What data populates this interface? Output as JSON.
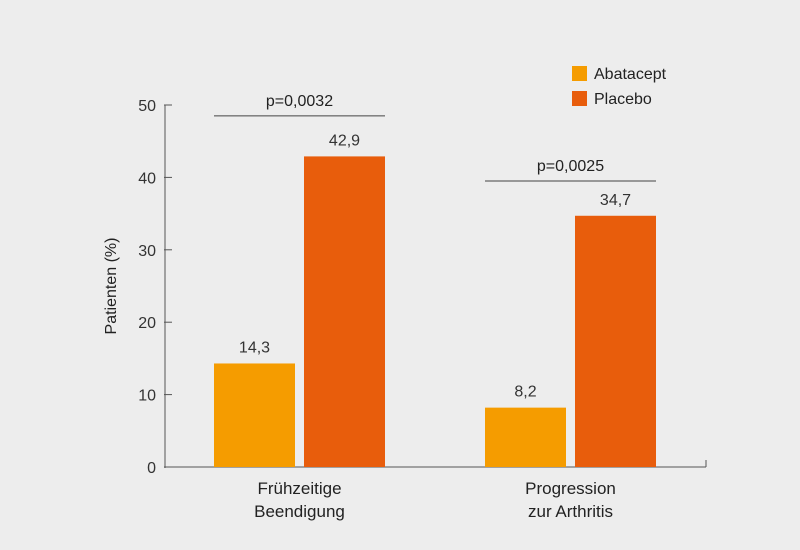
{
  "chart_data": {
    "type": "bar",
    "title": "",
    "xlabel": "",
    "ylabel": "Patienten (%)",
    "ylim": [
      0,
      50
    ],
    "yticks": [
      0,
      10,
      20,
      30,
      40,
      50
    ],
    "categories": [
      [
        "Frühzeitige",
        "Beendigung"
      ],
      [
        "Progression",
        "zur Arthritis"
      ]
    ],
    "series": [
      {
        "name": "Abatacept",
        "color": "#f59c00",
        "values": [
          14.3,
          8.2
        ],
        "labels": [
          "14,3",
          "8,2"
        ]
      },
      {
        "name": "Placebo",
        "color": "#e85d0c",
        "values": [
          42.9,
          34.7
        ],
        "labels": [
          "42,9",
          "34,7"
        ]
      }
    ],
    "annotations": [
      {
        "category": 0,
        "text": "p=0,0032",
        "level": 48.5
      },
      {
        "category": 1,
        "text": "p=0,0025",
        "level": 39.5
      }
    ],
    "legend_position": "top-right",
    "grid": false
  }
}
